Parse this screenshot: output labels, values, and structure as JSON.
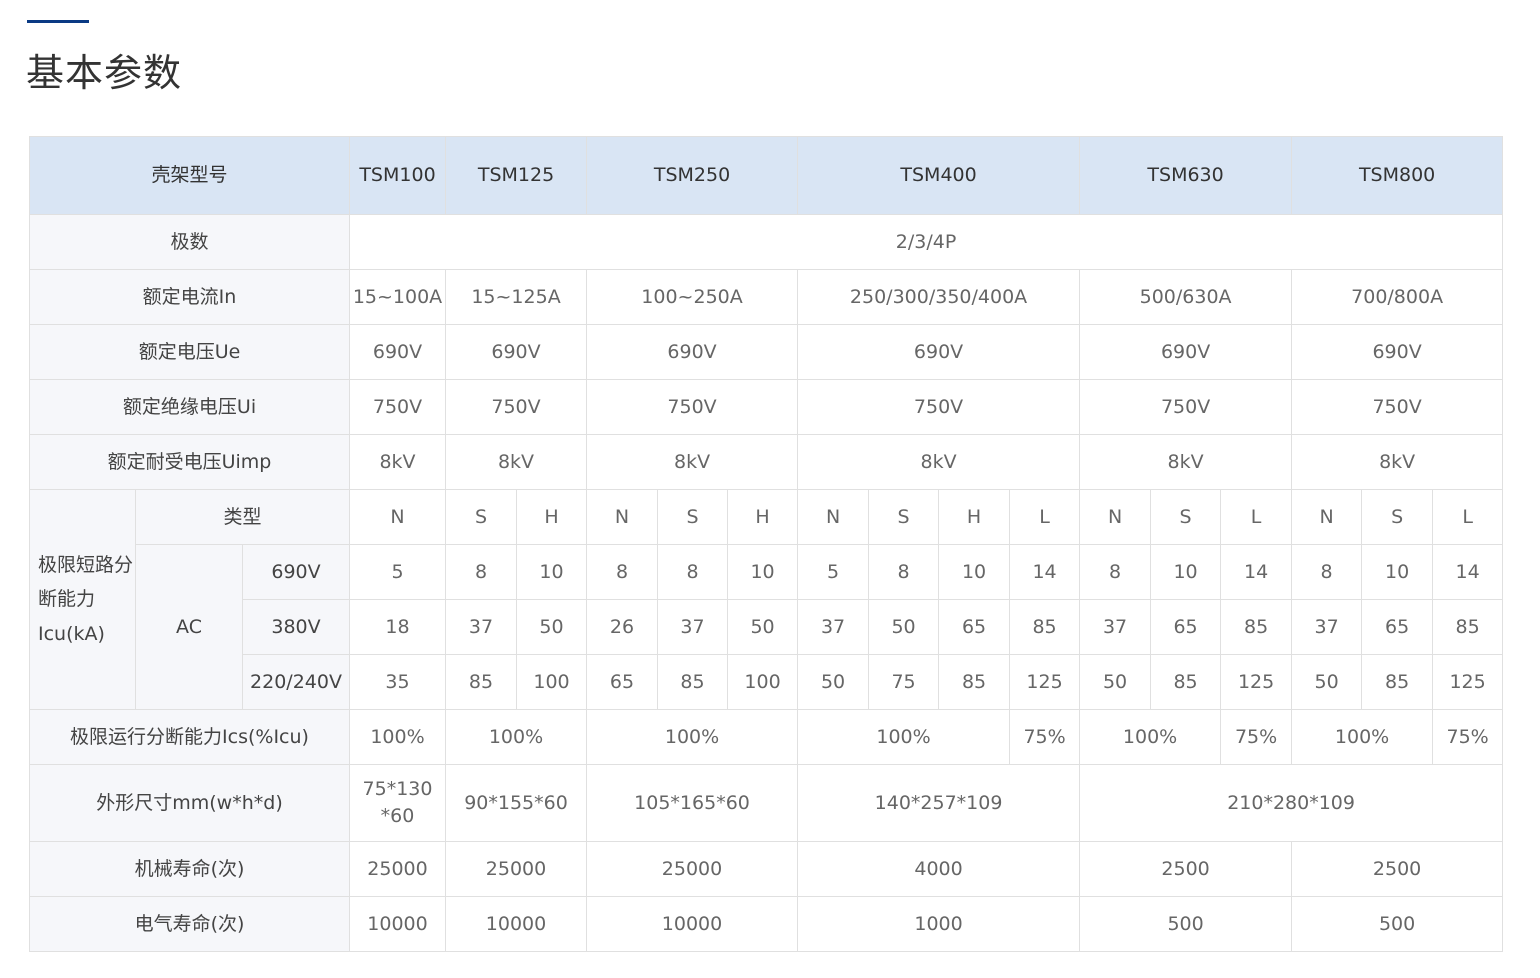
{
  "title": "基本参数",
  "colors": {
    "accent": "#0a3a84",
    "header_bg": "#d9e5f4",
    "label_bg": "#f6f7fa"
  },
  "table": {
    "rows": [
      {
        "cls": "head",
        "cells": [
          {
            "t": "壳架型号",
            "cs": 3,
            "lbl": 1
          },
          {
            "t": "TSM100"
          },
          {
            "t": "TSM125",
            "cs": 2
          },
          {
            "t": "TSM250",
            "cs": 3
          },
          {
            "t": "TSM400",
            "cs": 4
          },
          {
            "t": "TSM630",
            "cs": 3
          },
          {
            "t": "TSM800",
            "cs": 3
          }
        ]
      },
      {
        "cells": [
          {
            "t": "极数",
            "cs": 3,
            "lbl": 1
          },
          {
            "t": "2/3/4P",
            "cs": 16
          }
        ]
      },
      {
        "cells": [
          {
            "t": "额定电流In",
            "cs": 3,
            "lbl": 1
          },
          {
            "t": "15~100A"
          },
          {
            "t": "15~125A",
            "cs": 2
          },
          {
            "t": "100~250A",
            "cs": 3
          },
          {
            "t": "250/300/350/400A",
            "cs": 4
          },
          {
            "t": "500/630A",
            "cs": 3
          },
          {
            "t": "700/800A",
            "cs": 3
          }
        ]
      },
      {
        "cells": [
          {
            "t": "额定电压Ue",
            "cs": 3,
            "lbl": 1
          },
          {
            "t": "690V"
          },
          {
            "t": "690V",
            "cs": 2
          },
          {
            "t": "690V",
            "cs": 3
          },
          {
            "t": "690V",
            "cs": 4
          },
          {
            "t": "690V",
            "cs": 3
          },
          {
            "t": "690V",
            "cs": 3
          }
        ]
      },
      {
        "cells": [
          {
            "t": "额定绝缘电压Ui",
            "cs": 3,
            "lbl": 1
          },
          {
            "t": "750V"
          },
          {
            "t": "750V",
            "cs": 2
          },
          {
            "t": "750V",
            "cs": 3
          },
          {
            "t": "750V",
            "cs": 4
          },
          {
            "t": "750V",
            "cs": 3
          },
          {
            "t": "750V",
            "cs": 3
          }
        ]
      },
      {
        "cells": [
          {
            "t": "额定耐受电压Uimp",
            "cs": 3,
            "lbl": 1
          },
          {
            "t": "8kV"
          },
          {
            "t": "8kV",
            "cs": 2
          },
          {
            "t": "8kV",
            "cs": 3
          },
          {
            "t": "8kV",
            "cs": 4
          },
          {
            "t": "8kV",
            "cs": 3
          },
          {
            "t": "8kV",
            "cs": 3
          }
        ]
      },
      {
        "cells": [
          {
            "t": "极限短路分断能力Icu(kA)",
            "rs": 4,
            "lbl": 1,
            "left": 1
          },
          {
            "t": "类型",
            "cs": 2,
            "lbl": 1
          },
          {
            "t": "N"
          },
          {
            "t": "S"
          },
          {
            "t": "H"
          },
          {
            "t": "N"
          },
          {
            "t": "S"
          },
          {
            "t": "H"
          },
          {
            "t": "N"
          },
          {
            "t": "S"
          },
          {
            "t": "H"
          },
          {
            "t": "L"
          },
          {
            "t": "N"
          },
          {
            "t": "S"
          },
          {
            "t": "L"
          },
          {
            "t": "N"
          },
          {
            "t": "S"
          },
          {
            "t": "L"
          }
        ]
      },
      {
        "cells": [
          {
            "t": "AC",
            "rs": 3,
            "lbl": 1
          },
          {
            "t": "690V",
            "lbl": 1
          },
          {
            "t": "5"
          },
          {
            "t": "8"
          },
          {
            "t": "10"
          },
          {
            "t": "8"
          },
          {
            "t": "8"
          },
          {
            "t": "10"
          },
          {
            "t": "5"
          },
          {
            "t": "8"
          },
          {
            "t": "10"
          },
          {
            "t": "14"
          },
          {
            "t": "8"
          },
          {
            "t": "10"
          },
          {
            "t": "14"
          },
          {
            "t": "8"
          },
          {
            "t": "10"
          },
          {
            "t": "14"
          }
        ]
      },
      {
        "cells": [
          {
            "t": "380V",
            "lbl": 1
          },
          {
            "t": "18"
          },
          {
            "t": "37"
          },
          {
            "t": "50"
          },
          {
            "t": "26"
          },
          {
            "t": "37"
          },
          {
            "t": "50"
          },
          {
            "t": "37"
          },
          {
            "t": "50"
          },
          {
            "t": "65"
          },
          {
            "t": "85"
          },
          {
            "t": "37"
          },
          {
            "t": "65"
          },
          {
            "t": "85"
          },
          {
            "t": "37"
          },
          {
            "t": "65"
          },
          {
            "t": "85"
          }
        ]
      },
      {
        "cells": [
          {
            "t": "220/240V",
            "lbl": 1
          },
          {
            "t": "35"
          },
          {
            "t": "85"
          },
          {
            "t": "100"
          },
          {
            "t": "65"
          },
          {
            "t": "85"
          },
          {
            "t": "100"
          },
          {
            "t": "50"
          },
          {
            "t": "75"
          },
          {
            "t": "85"
          },
          {
            "t": "125"
          },
          {
            "t": "50"
          },
          {
            "t": "85"
          },
          {
            "t": "125"
          },
          {
            "t": "50"
          },
          {
            "t": "85"
          },
          {
            "t": "125"
          }
        ]
      },
      {
        "cells": [
          {
            "t": "极限运行分断能力Ics(%Icu)",
            "cs": 3,
            "lbl": 1
          },
          {
            "t": "100%"
          },
          {
            "t": "100%",
            "cs": 2
          },
          {
            "t": "100%",
            "cs": 3
          },
          {
            "t": "100%",
            "cs": 3
          },
          {
            "t": "75%"
          },
          {
            "t": "100%",
            "cs": 2
          },
          {
            "t": "75%"
          },
          {
            "t": "100%",
            "cs": 2
          },
          {
            "t": "75%"
          }
        ]
      },
      {
        "cls": "tall",
        "cells": [
          {
            "t": "外形尺寸mm(w*h*d)",
            "cs": 3,
            "lbl": 1
          },
          {
            "t": "75*130 *60"
          },
          {
            "t": "90*155*60",
            "cs": 2
          },
          {
            "t": "105*165*60",
            "cs": 3
          },
          {
            "t": "140*257*109",
            "cs": 4
          },
          {
            "t": "210*280*109",
            "cs": 6
          }
        ]
      },
      {
        "cells": [
          {
            "t": "机械寿命(次)",
            "cs": 3,
            "lbl": 1
          },
          {
            "t": "25000"
          },
          {
            "t": "25000",
            "cs": 2
          },
          {
            "t": "25000",
            "cs": 3
          },
          {
            "t": "4000",
            "cs": 4
          },
          {
            "t": "2500",
            "cs": 3
          },
          {
            "t": "2500",
            "cs": 3
          }
        ]
      },
      {
        "cells": [
          {
            "t": "电气寿命(次)",
            "cs": 3,
            "lbl": 1
          },
          {
            "t": "10000"
          },
          {
            "t": "10000",
            "cs": 2
          },
          {
            "t": "10000",
            "cs": 3
          },
          {
            "t": "1000",
            "cs": 4
          },
          {
            "t": "500",
            "cs": 3
          },
          {
            "t": "500",
            "cs": 3
          }
        ]
      }
    ]
  }
}
